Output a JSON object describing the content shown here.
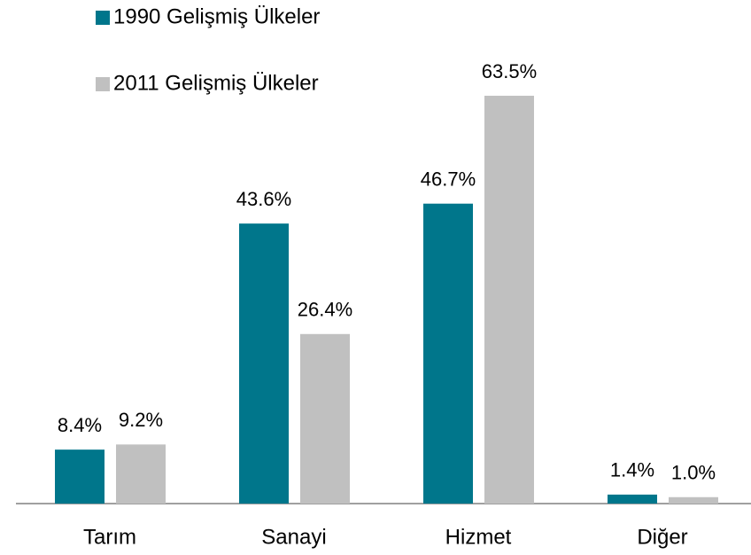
{
  "chart_data": {
    "type": "bar",
    "categories": [
      "Tarım",
      "Sanayi",
      "Hizmet",
      "Diğer"
    ],
    "series": [
      {
        "name": "1990 Gelişmiş Ülkeler",
        "color": "#00768b",
        "values": [
          8.4,
          43.6,
          46.7,
          1.4
        ],
        "value_labels": [
          "8.4%",
          "43.6%",
          "46.7%",
          "1.4%"
        ]
      },
      {
        "name": "2011 Gelişmiş Ülkeler",
        "color": "#c0c0c0",
        "values": [
          9.2,
          26.4,
          63.5,
          1.0
        ],
        "value_labels": [
          "9.2%",
          "26.4%",
          "63.5%",
          "1.0%"
        ]
      }
    ],
    "legend": "top-left"
  }
}
